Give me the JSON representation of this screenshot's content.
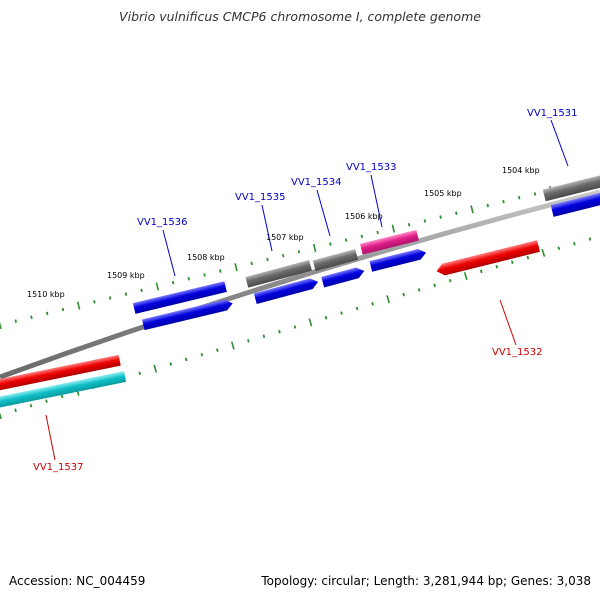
{
  "title": "Vibrio vulnificus CMCP6 chromosome I, complete genome",
  "footer": {
    "accession": "Accession: NC_004459",
    "stats": "Topology: circular; Length: 3,281,944 bp; Genes: 3,038"
  },
  "colors": {
    "backbone": "#909090",
    "tick": "#2f8f2f",
    "gene_label_forward": "#0000cc",
    "gene_label_reverse": "#cc0000",
    "cds_forward": "#0000dd",
    "cds_reverse": "#ee0000",
    "gene_gray": "#6a6a6a",
    "gene_magenta": "#e0208a",
    "gene_teal": "#10c0c8"
  },
  "tick_labels": [
    {
      "kbp": 1510,
      "text": "1510 kbp"
    },
    {
      "kbp": 1509,
      "text": "1509 kbp"
    },
    {
      "kbp": 1508,
      "text": "1508 kbp"
    },
    {
      "kbp": 1507,
      "text": "1507 kbp"
    },
    {
      "kbp": 1506,
      "text": "1506 kbp"
    },
    {
      "kbp": 1505,
      "text": "1505 kbp"
    },
    {
      "kbp": 1504,
      "text": "1504 kbp"
    }
  ],
  "genes": [
    {
      "name": "VV1_1531",
      "strand": "forward"
    },
    {
      "name": "VV1_1532",
      "strand": "reverse"
    },
    {
      "name": "VV1_1533",
      "strand": "forward"
    },
    {
      "name": "VV1_1534",
      "strand": "forward"
    },
    {
      "name": "VV1_1535",
      "strand": "forward"
    },
    {
      "name": "VV1_1536",
      "strand": "forward"
    },
    {
      "name": "VV1_1537",
      "strand": "reverse"
    }
  ]
}
